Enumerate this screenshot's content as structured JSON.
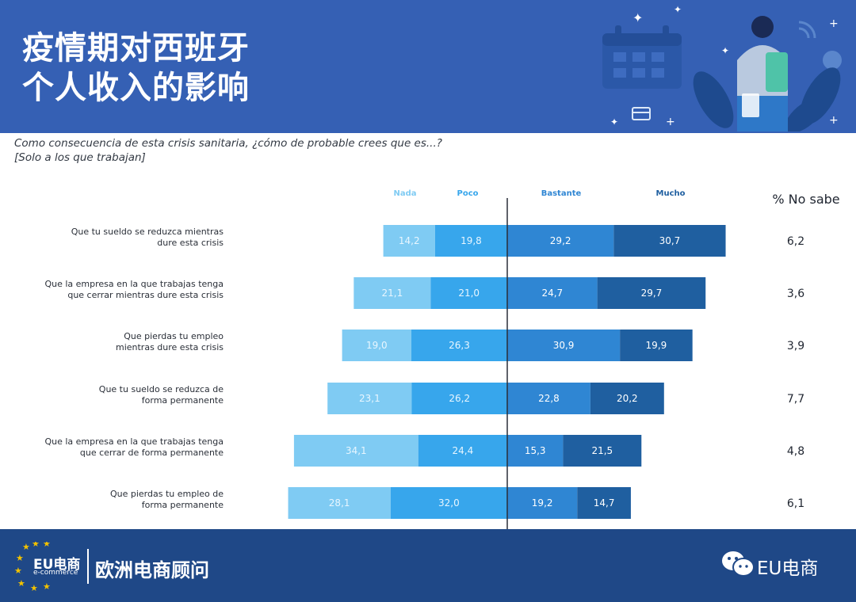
{
  "header": {
    "title_line1": "疫情期对西班牙",
    "title_line2": "个人收入的影响"
  },
  "question": {
    "line1": "Como consecuencia de esta crisis sanitaria, ¿cómo de probable crees que es...?",
    "line2": "[Solo a los que trabajan]"
  },
  "colors": {
    "header_bg": "#3560b4",
    "footer_bg": "#1f4887",
    "nada": "#7fcbf3",
    "poco": "#37a6ec",
    "bastante": "#2f86d3",
    "mucho": "#1f5fa0"
  },
  "chart_data": {
    "type": "bar",
    "orientation": "horizontal",
    "stacked": "diverging",
    "categories": [
      "Que tu sueldo se reduzca mientras dure esta crisis",
      "Que la empresa en la que trabajas tenga que cerrar mientras dure esta crisis",
      "Que pierdas tu empleo mientras dure esta crisis",
      "Que tu sueldo se reduzca de forma permanente",
      "Que la empresa en la que trabajas tenga que cerrar de forma permanente",
      "Que pierdas tu empleo de forma permanente"
    ],
    "category_lines": [
      [
        "Que tu sueldo se reduzca mientras",
        "dure esta crisis"
      ],
      [
        "Que la empresa en la que trabajas tenga",
        "que cerrar mientras dure esta crisis"
      ],
      [
        "Que pierdas tu empleo",
        "mientras dure esta crisis"
      ],
      [
        "Que tu sueldo se reduzca de",
        "forma permanente"
      ],
      [
        "Que la empresa en la que trabajas tenga",
        "que cerrar de forma permanente"
      ],
      [
        "Que pierdas tu empleo de",
        "forma permanente"
      ]
    ],
    "series": [
      {
        "name": "Nada",
        "values": [
          14.2,
          21.1,
          19.0,
          23.1,
          34.1,
          28.1
        ],
        "labels": [
          "14,2",
          "21,1",
          "19,0",
          "23,1",
          "34,1",
          "28,1"
        ]
      },
      {
        "name": "Poco",
        "values": [
          19.8,
          21.0,
          26.3,
          26.2,
          24.4,
          32.0
        ],
        "labels": [
          "19,8",
          "21,0",
          "26,3",
          "26,2",
          "24,4",
          "32,0"
        ]
      },
      {
        "name": "Bastante",
        "values": [
          29.2,
          24.7,
          30.9,
          22.8,
          15.3,
          19.2
        ],
        "labels": [
          "29,2",
          "24,7",
          "30,9",
          "22,8",
          "15,3",
          "19,2"
        ]
      },
      {
        "name": "Mucho",
        "values": [
          30.7,
          29.7,
          19.9,
          20.2,
          21.5,
          14.7
        ],
        "labels": [
          "30,7",
          "29,7",
          "19,9",
          "20,2",
          "21,5",
          "14,7"
        ]
      }
    ],
    "no_sabe": {
      "header": "% No sabe",
      "values": [
        6.2,
        3.6,
        3.9,
        7.7,
        4.8,
        6.1
      ],
      "labels": [
        "6,2",
        "3,6",
        "3,9",
        "7,7",
        "4,8",
        "6,1"
      ]
    },
    "legend_placement": "top",
    "grid": false
  },
  "footer": {
    "logo_text": "EU电商",
    "logo_sub": "e-commerce",
    "brand": "欧洲电商顾问",
    "wechat_label": "EU电商"
  },
  "icons": [
    "calendar-icon",
    "credit-card-icon",
    "wifi-icon",
    "shopping-person-illustration",
    "wechat-icon",
    "eu-stars-icon"
  ]
}
